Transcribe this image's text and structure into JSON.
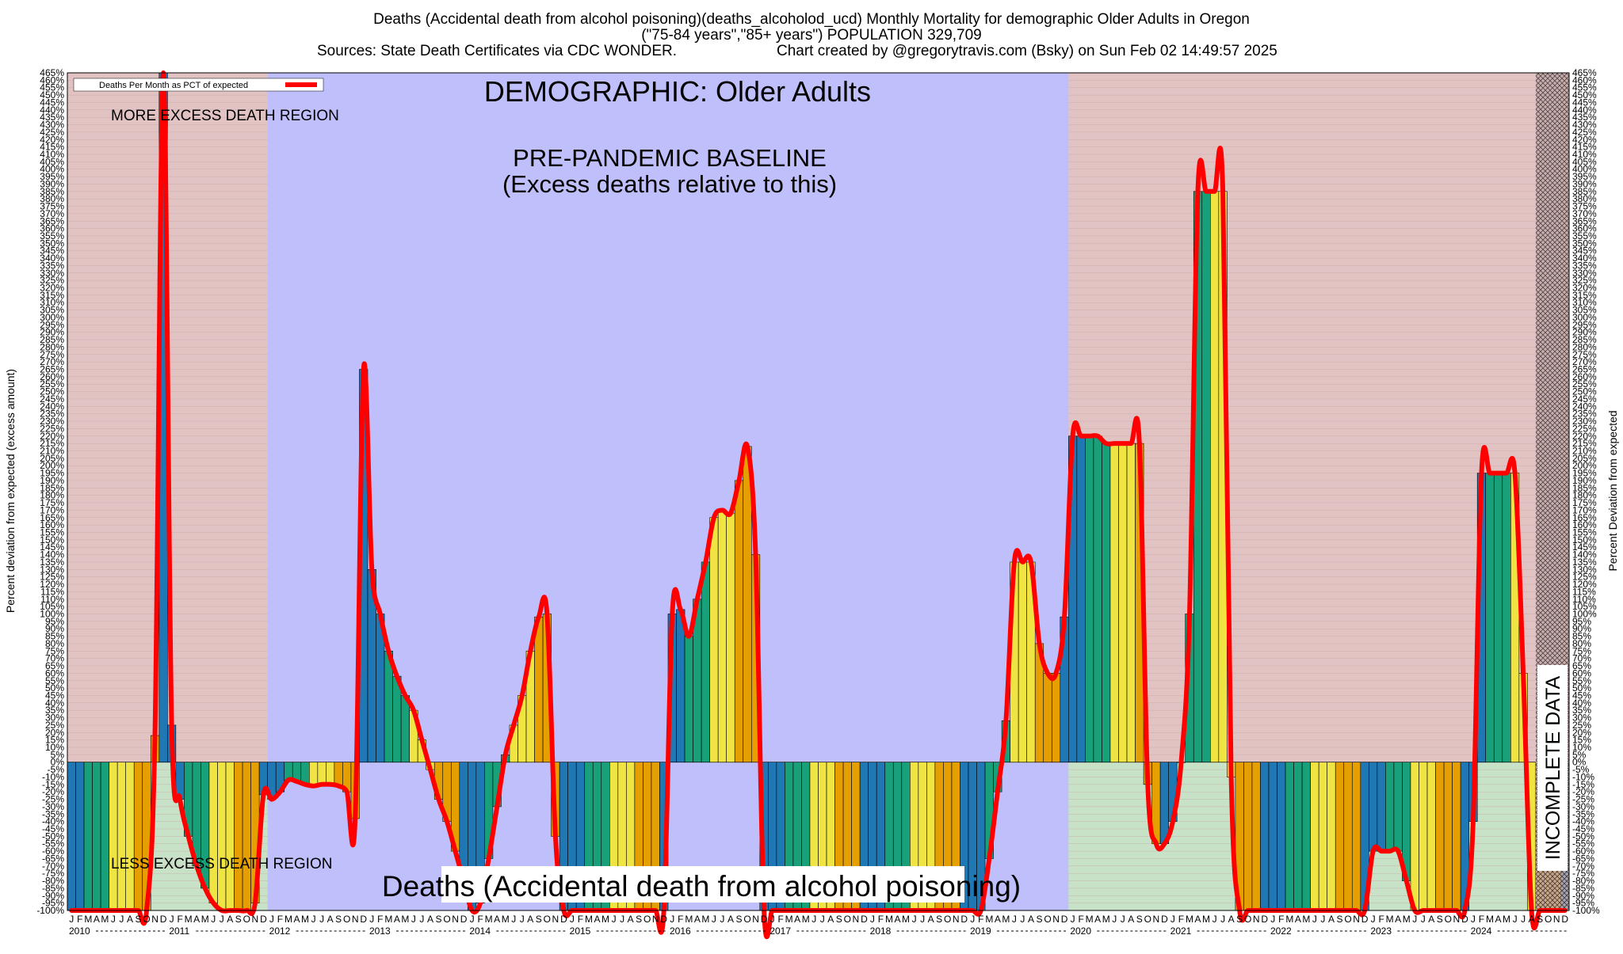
{
  "header": {
    "line1": "Deaths (Accidental death from alcohol poisoning)(deaths_alcoholod_ucd) Monthly Mortality for demographic Older Adults in Oregon",
    "line2": "(\"75-84 years\",\"85+ years\") POPULATION 329,709",
    "line3_left": "Sources: State Death Certificates via CDC WONDER.",
    "line3_right": "Chart created by @gregorytravis.com (Bsky) on Sun Feb 02 14:49:57 2025"
  },
  "chart_data": {
    "type": "bar",
    "ylabel_left": "Percent deviation from expected (excess amount)",
    "ylabel_right": "Percent Deviation from expected",
    "ylim": [
      -100,
      465
    ],
    "y_tick_step": 5,
    "legend": "Deaths Per Month as PCT of expected",
    "legend_position": "top-left",
    "annotations": {
      "demographic": "DEMOGRAPHIC: Older Adults",
      "baseline_line1": "PRE-PANDEMIC BASELINE",
      "baseline_line2": "(Excess deaths relative to this)",
      "more_region": "MORE EXCESS DEATH REGION",
      "less_region": "LESS EXCESS DEATH REGION",
      "incomplete": "INCOMPLETE DATA",
      "bottom_title": "Deaths (Accidental death from alcohol poisoning)"
    },
    "month_letters": [
      "J",
      "F",
      "M",
      "A",
      "M",
      "J",
      "J",
      "A",
      "S",
      "O",
      "N",
      "D"
    ],
    "years": [
      "2010",
      "2011",
      "2012",
      "2013",
      "2014",
      "2015",
      "2016",
      "2017",
      "2018",
      "2019",
      "2020",
      "2021",
      "2022",
      "2023",
      "2024"
    ],
    "baseline_period": [
      "2012-01",
      "2019-12"
    ],
    "incomplete_period": [
      "2024-09",
      "2024-12"
    ],
    "colors": {
      "region_more": "#e2c3c3",
      "region_less": "#c8e2c8",
      "baseline": "#bfbffc",
      "trend_line": "#ff0000",
      "bar_blue": "#1f77b4",
      "bar_green": "#17a07a",
      "bar_yellow": "#f0e442",
      "bar_orange": "#e69f00"
    },
    "series": [
      {
        "name": "Deaths Per Month as PCT of expected",
        "values": [
          -100,
          -100,
          -100,
          -100,
          -100,
          -100,
          -100,
          -100,
          -100,
          -100,
          18,
          465,
          25,
          -25,
          -50,
          -70,
          -85,
          -95,
          -100,
          -100,
          -100,
          -100,
          -95,
          -22,
          -25,
          -20,
          -12,
          -13,
          -15,
          -16,
          -15,
          -15,
          -16,
          -20,
          -38,
          265,
          130,
          100,
          75,
          58,
          45,
          35,
          15,
          -5,
          -25,
          -40,
          -60,
          -80,
          -100,
          -95,
          -65,
          -30,
          5,
          25,
          45,
          75,
          98,
          100,
          -50,
          -100,
          -100,
          -100,
          -100,
          -100,
          -100,
          -100,
          -100,
          -100,
          -100,
          -100,
          -100,
          -100,
          100,
          103,
          85,
          110,
          135,
          165,
          170,
          168,
          190,
          213,
          140,
          -100,
          -100,
          -100,
          -100,
          -100,
          -100,
          -100,
          -100,
          -100,
          -100,
          -100,
          -100,
          -100,
          -100,
          -100,
          -100,
          -100,
          -100,
          -100,
          -100,
          -100,
          -100,
          -100,
          -100,
          -100,
          -100,
          -100,
          -65,
          -20,
          28,
          135,
          135,
          135,
          80,
          60,
          60,
          98,
          220,
          220,
          220,
          220,
          215,
          215,
          215,
          215,
          215,
          -15,
          -55,
          -55,
          -40,
          0,
          100,
          385,
          385,
          385,
          385,
          -10,
          -100,
          -100,
          -100,
          -100,
          -100,
          -100,
          -100,
          -100,
          -100,
          -100,
          -100,
          -100,
          -100,
          -100,
          -100,
          -100,
          -60,
          -60,
          -60,
          -60,
          -80,
          -100,
          -100,
          -100,
          -100,
          -100,
          -100,
          -100,
          -40,
          195,
          195,
          195,
          195,
          195,
          60,
          -100,
          -100,
          -100,
          -100,
          -100
        ]
      }
    ]
  }
}
